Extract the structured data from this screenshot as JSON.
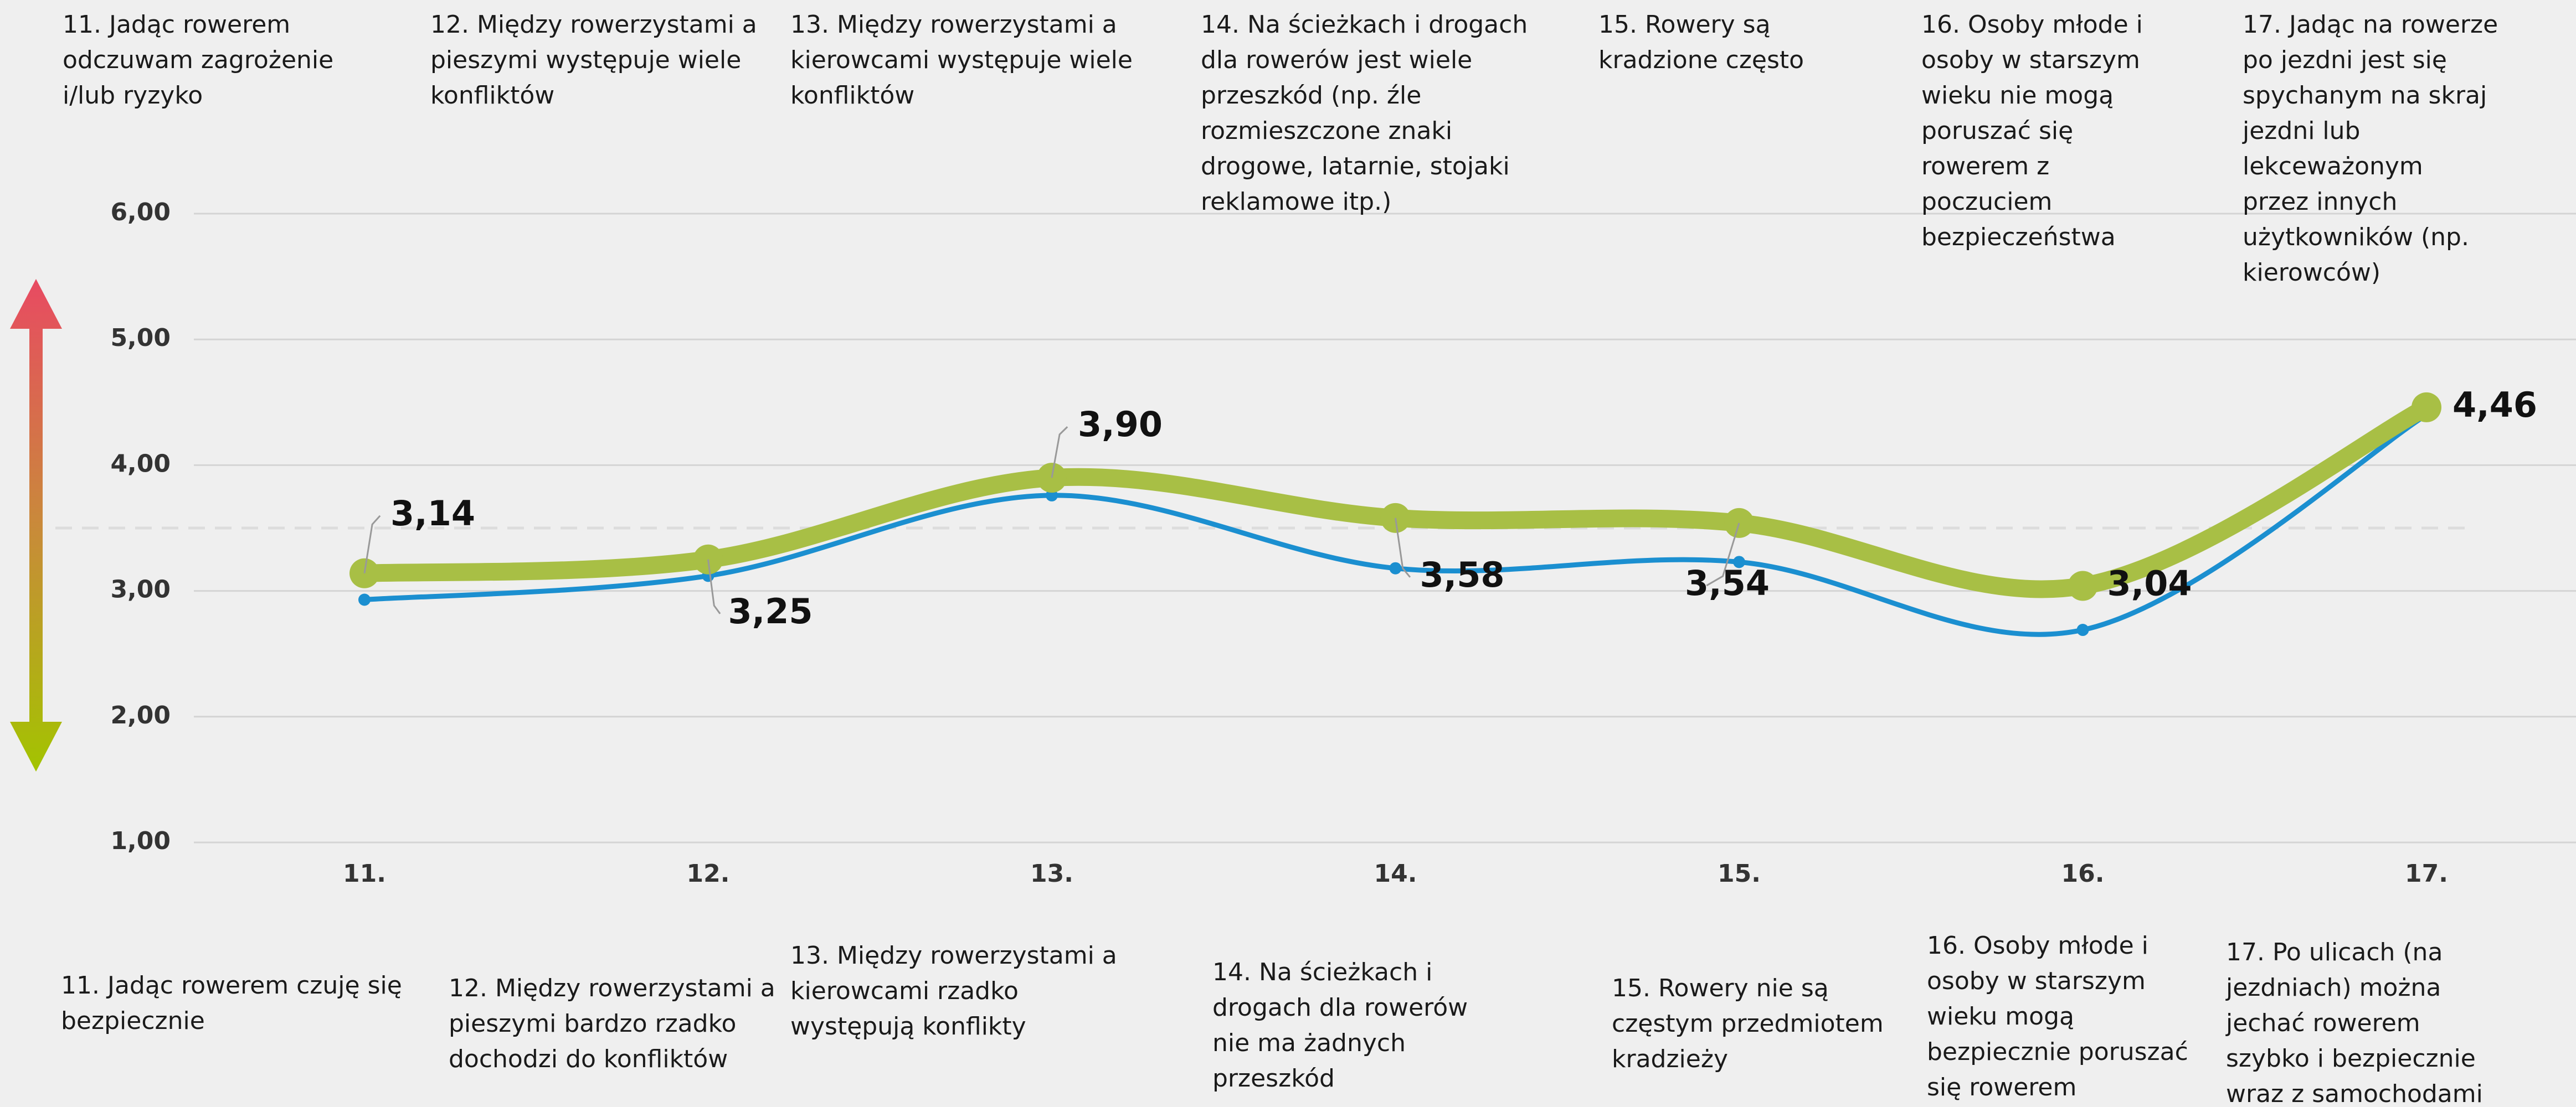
{
  "chart_data": {
    "type": "line",
    "categories": [
      "11.",
      "12.",
      "13.",
      "14.",
      "15.",
      "16.",
      "17."
    ],
    "series": [
      {
        "color": "#1b8fd0",
        "values": [
          2.93,
          3.12,
          3.76,
          3.18,
          3.23,
          2.69,
          4.4
        ]
      },
      {
        "color": "#a8bf45",
        "values": [
          3.14,
          3.25,
          3.9,
          3.58,
          3.54,
          3.04,
          4.46
        ],
        "value_labels": [
          "3,14",
          "3,25",
          "3,90",
          "3,58",
          "3,54",
          "3,04",
          "4,46"
        ]
      }
    ],
    "ylim": [
      1,
      6
    ],
    "yticks": [
      {
        "value": 1,
        "label": "1,00"
      },
      {
        "value": 2,
        "label": "2,00"
      },
      {
        "value": 3,
        "label": "3,00"
      },
      {
        "value": 4,
        "label": "4,00"
      },
      {
        "value": 5,
        "label": "5,00"
      },
      {
        "value": 6,
        "label": "6,00"
      }
    ],
    "grid": true,
    "reference_line": 3.5,
    "top_labels": [
      [
        "11. Jadąc rowerem",
        "odczuwam zagrożenie",
        "i/lub ryzyko"
      ],
      [
        "12. Między rowerzystami a",
        "pieszymi występuje wiele",
        "konfliktów"
      ],
      [
        "13. Między rowerzystami a",
        "kierowcami występuje wiele",
        "konfliktów"
      ],
      [
        "14. Na ścieżkach i drogach",
        "dla rowerów jest wiele",
        "przeszkód (np. źle",
        "rozmieszczone znaki",
        "drogowe, latarnie, stojaki",
        "reklamowe itp.)"
      ],
      [
        "15. Rowery są",
        "kradzione często"
      ],
      [
        "16. Osoby młode i",
        "osoby w starszym",
        "wieku nie mogą",
        "poruszać się",
        "rowerem z",
        "poczuciem",
        "bezpieczeństwa"
      ],
      [
        "17. Jadąc na rowerze",
        "po jezdni jest się",
        "spychanym na skraj",
        "jezdni lub",
        "lekceważonym",
        "przez innych",
        "użytkowników (np.",
        "kierowców)"
      ]
    ],
    "bottom_labels": [
      [
        "11. Jadąc rowerem czuję się",
        "bezpiecznie"
      ],
      [
        "12. Między rowerzystami a",
        "pieszymi bardzo rzadko",
        "dochodzi do konfliktów"
      ],
      [
        "13. Między rowerzystami a",
        "kierowcami rzadko",
        "występują konflikty"
      ],
      [
        "14. Na ścieżkach i",
        "drogach dla rowerów",
        "nie ma żadnych",
        "przeszkód"
      ],
      [
        "15. Rowery nie są",
        "częstym przedmiotem",
        "kradzieży"
      ],
      [
        "16. Osoby młode i",
        "osoby w starszym",
        "wieku mogą",
        "bezpiecznie poruszać",
        "się rowerem"
      ],
      [
        "17. Po ulicach (na",
        "jezdniach) można",
        "jechać rowerem",
        "szybko i bezpiecznie",
        "wraz z samochodami"
      ]
    ]
  }
}
